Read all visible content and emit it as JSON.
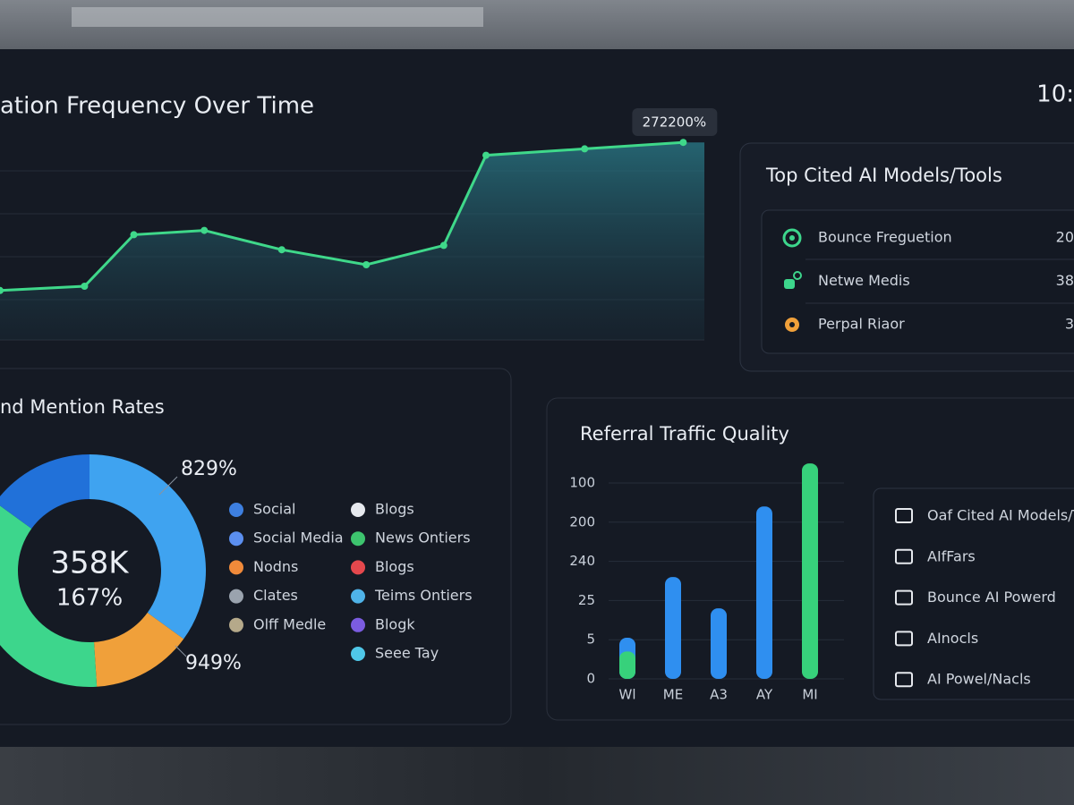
{
  "header": {
    "time": "10:"
  },
  "chart_data": [
    {
      "type": "line",
      "title": "ation Frequency Over Time",
      "x": [
        0,
        12,
        19,
        29,
        40,
        52,
        63,
        69,
        83,
        97
      ],
      "xlim": [
        0,
        100
      ],
      "ylim": [
        0,
        100
      ],
      "grid": true,
      "series": [
        {
          "color": "#3fd88a",
          "values": [
            23,
            25,
            49,
            51,
            42,
            35,
            44,
            86,
            89,
            92
          ]
        }
      ],
      "annotation": "272200%"
    },
    {
      "type": "pie",
      "title": "nd Mention Rates",
      "values": [
        35,
        14,
        36,
        15
      ],
      "colors": [
        "#3fa3f0",
        "#f0a03a",
        "#3dd68c",
        "#2171d9"
      ],
      "center_value": "358K",
      "center_label": "167%",
      "annotations": [
        "829%",
        "949%"
      ],
      "legend": [
        {
          "name": "Social",
          "color": "#3d7fe0"
        },
        {
          "name": "Social Media",
          "color": "#5b8ff0"
        },
        {
          "name": "Nodns",
          "color": "#f08a3a"
        },
        {
          "name": "Clates",
          "color": "#9aa3ae"
        },
        {
          "name": "Olff Medle",
          "color": "#b5a98a"
        },
        {
          "name": "Blogs",
          "color": "#e6e9ee"
        },
        {
          "name": "News Ontiers",
          "color": "#3dc46e"
        },
        {
          "name": "Blogs",
          "color": "#e5484d"
        },
        {
          "name": "Teims Ontiers",
          "color": "#4fb3e8"
        },
        {
          "name": "Blogk",
          "color": "#7b5ce0"
        },
        {
          "name": "Seee Tay",
          "color": "#4fc7e8"
        }
      ]
    },
    {
      "type": "bar",
      "title": "Referral Traffic Quality",
      "categories": [
        "Wl",
        "ME",
        "A3",
        "AY",
        "MI"
      ],
      "ylim": [
        0,
        5.6
      ],
      "yticks": [
        0,
        {
          "value": 1,
          "label": "5"
        },
        {
          "value": 2,
          "label": "25"
        },
        {
          "value": 3,
          "label": "240"
        },
        {
          "value": 4,
          "label": "200"
        },
        {
          "value": 5,
          "label": "100"
        }
      ],
      "grid": true,
      "series": [
        {
          "color": "#2f8ff0",
          "values": [
            1.05,
            2.6,
            1.8,
            4.4,
            null
          ]
        },
        {
          "color": "#37d17b",
          "values": [
            0.7,
            null,
            null,
            null,
            5.5
          ]
        }
      ]
    }
  ],
  "top_cited": {
    "title": "Top Cited AI Models/Tools",
    "rows": [
      {
        "label": "Bounce Freguetion",
        "value": 20
      },
      {
        "label": "Netwe Medis",
        "value": 38
      },
      {
        "label": "Perpal Riaor",
        "value": 3
      }
    ]
  },
  "side_list": {
    "items": [
      "Oaf Cited AI Models/T",
      "AIfFars",
      "Bounce AI Powerd",
      "AInocls",
      "AI Powel/Nacls"
    ]
  }
}
